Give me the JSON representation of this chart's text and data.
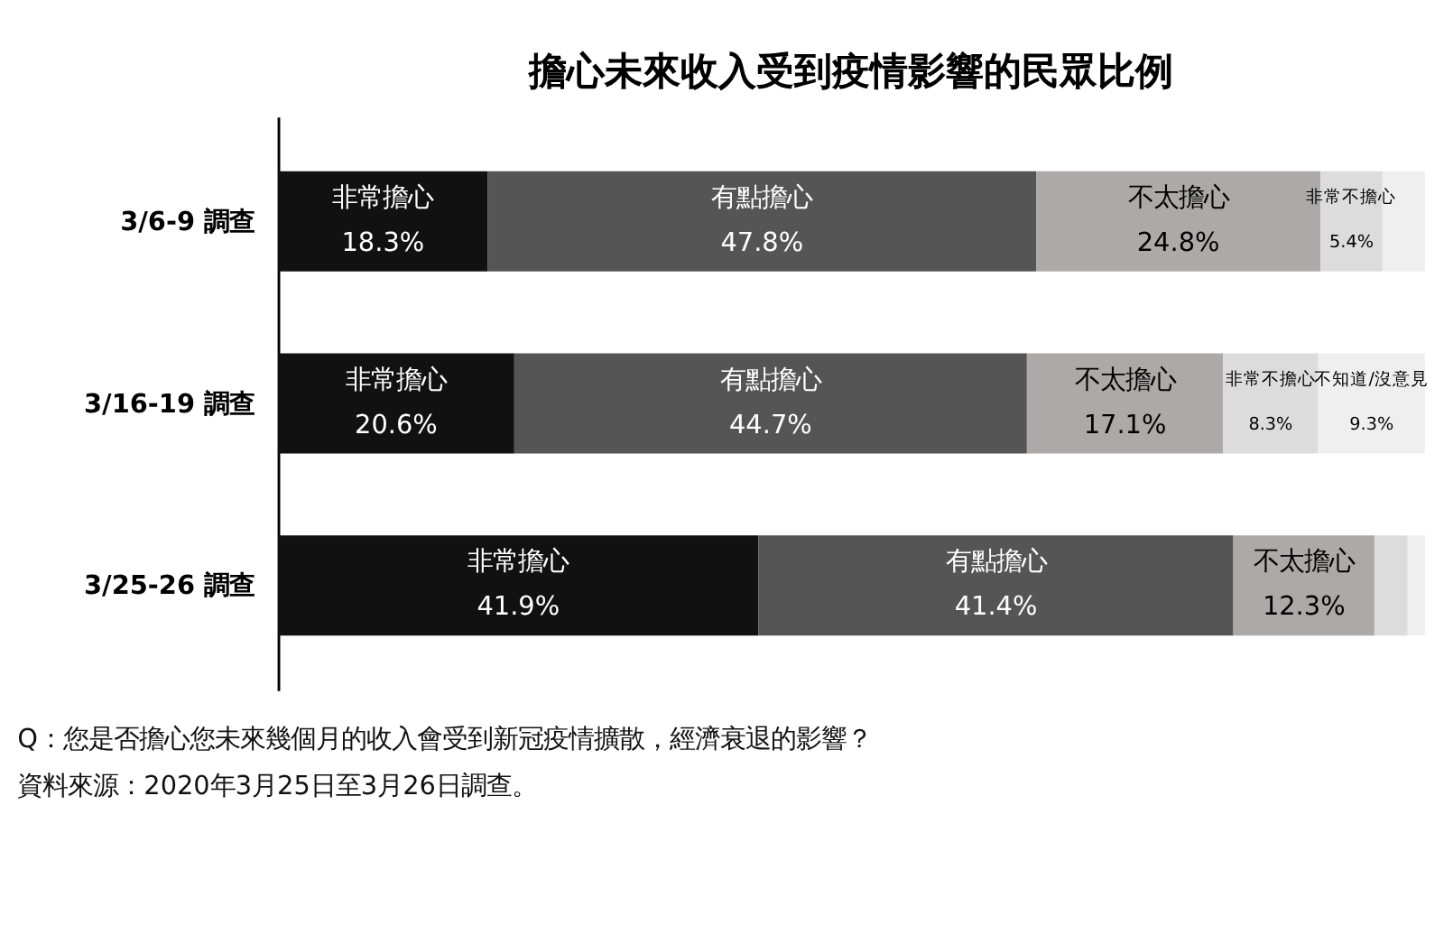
{
  "chart_data": {
    "type": "bar",
    "orientation": "horizontal",
    "stacked": true,
    "title": "擔心未來收入受到疫情影響的民眾比例",
    "categories": [
      "3/6-9 調查",
      "3/16-19 調查",
      "3/25-26 調查"
    ],
    "series": [
      {
        "name": "非常擔心",
        "color": "#111111",
        "values": [
          18.3,
          20.6,
          41.9
        ],
        "value_labels": [
          "18.3%",
          "20.6%",
          "41.9%"
        ]
      },
      {
        "name": "有點擔心",
        "color": "#555555",
        "values": [
          47.8,
          44.7,
          41.4
        ],
        "value_labels": [
          "47.8%",
          "44.7%",
          "41.4%"
        ]
      },
      {
        "name": "不太擔心",
        "color": "#ada9a9",
        "values": [
          24.8,
          17.1,
          12.3
        ],
        "value_labels": [
          "24.8%",
          "17.1%",
          "12.3%"
        ]
      },
      {
        "name": "非常不擔心",
        "color": "#dcdcdc",
        "values": [
          5.4,
          8.3,
          2.9
        ],
        "value_labels": [
          "5.4%",
          "8.3%",
          null
        ]
      },
      {
        "name": "不知道/沒意見",
        "color": "#efefef",
        "values": [
          3.7,
          9.3,
          1.5
        ],
        "value_labels": [
          null,
          "9.3%",
          null
        ]
      }
    ],
    "grid": false,
    "annotations": [
      "Q：您是否擔心您未來幾個月的收入會受到新冠疫情擴散，經濟衰退的影響？",
      "資料來源：2020年3月25日至3月26日調查。"
    ]
  }
}
